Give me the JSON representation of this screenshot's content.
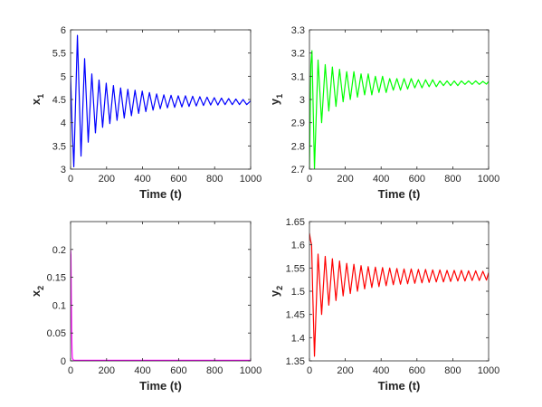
{
  "chart_data": [
    {
      "id": "x1",
      "type": "line",
      "xlabel": "Time (t)",
      "ylabel": {
        "base": "x",
        "sub": "1"
      },
      "xlim": [
        0,
        1000
      ],
      "ylim": [
        3,
        6
      ],
      "xticks": [
        0,
        200,
        400,
        600,
        800,
        1000
      ],
      "yticks": [
        3,
        3.5,
        4,
        4.5,
        5,
        5.5,
        6
      ],
      "ytick_labels": [
        "3",
        "3.5",
        "4",
        "4.5",
        "5",
        "5.5",
        "6"
      ],
      "color": "#0000ff",
      "series": [
        {
          "x": [
            0,
            8,
            18,
            38,
            58,
            78,
            98,
            118,
            138,
            158,
            178,
            198,
            218,
            238,
            258,
            278,
            298,
            318,
            338,
            358,
            378,
            398,
            418,
            438,
            458,
            478,
            498,
            518,
            538,
            558,
            578,
            598,
            618,
            638,
            658,
            678,
            698,
            718,
            738,
            758,
            778,
            798,
            818,
            838,
            858,
            878,
            898,
            918,
            938,
            958,
            978,
            1000
          ],
          "y": [
            5.0,
            4.0,
            3.05,
            5.88,
            3.28,
            5.38,
            3.58,
            5.05,
            3.78,
            4.92,
            3.9,
            4.85,
            3.98,
            4.8,
            4.05,
            4.75,
            4.1,
            4.72,
            4.15,
            4.7,
            4.2,
            4.68,
            4.24,
            4.65,
            4.27,
            4.62,
            4.3,
            4.6,
            4.32,
            4.59,
            4.33,
            4.58,
            4.34,
            4.58,
            4.35,
            4.57,
            4.36,
            4.56,
            4.37,
            4.55,
            4.38,
            4.54,
            4.38,
            4.53,
            4.39,
            4.52,
            4.39,
            4.51,
            4.39,
            4.5,
            4.39,
            4.47
          ]
        }
      ]
    },
    {
      "id": "y1",
      "type": "line",
      "xlabel": "Time (t)",
      "ylabel": {
        "base": "y",
        "sub": "1"
      },
      "xlim": [
        0,
        1000
      ],
      "ylim": [
        2.7,
        3.3
      ],
      "xticks": [
        0,
        200,
        400,
        600,
        800,
        1000
      ],
      "yticks": [
        2.7,
        2.8,
        2.9,
        3.0,
        3.1,
        3.2,
        3.3
      ],
      "ytick_labels": [
        "2.7",
        "2.8",
        "2.9",
        "3",
        "3.1",
        "3.2",
        "3.3"
      ],
      "color": "#00ff00",
      "series": [
        {
          "x": [
            0,
            8,
            14,
            28,
            48,
            68,
            88,
            108,
            128,
            148,
            168,
            188,
            208,
            228,
            248,
            268,
            288,
            308,
            328,
            348,
            368,
            388,
            408,
            428,
            448,
            468,
            488,
            508,
            528,
            548,
            568,
            588,
            608,
            628,
            648,
            668,
            688,
            708,
            728,
            748,
            768,
            788,
            808,
            828,
            848,
            868,
            888,
            908,
            928,
            948,
            968,
            988,
            1000
          ],
          "y": [
            2.7,
            3.15,
            3.21,
            2.7,
            3.17,
            2.9,
            3.15,
            2.95,
            3.14,
            2.97,
            3.13,
            2.99,
            3.12,
            3.0,
            3.12,
            3.01,
            3.11,
            3.02,
            3.11,
            3.02,
            3.1,
            3.03,
            3.1,
            3.03,
            3.09,
            3.04,
            3.09,
            3.04,
            3.09,
            3.045,
            3.09,
            3.05,
            3.085,
            3.05,
            3.085,
            3.055,
            3.085,
            3.055,
            3.08,
            3.06,
            3.08,
            3.06,
            3.08,
            3.06,
            3.08,
            3.065,
            3.08,
            3.065,
            3.08,
            3.065,
            3.078,
            3.066,
            3.078
          ]
        }
      ]
    },
    {
      "id": "x2",
      "type": "line",
      "xlabel": "Time (t)",
      "ylabel": {
        "base": "x",
        "sub": "2"
      },
      "xlim": [
        0,
        1000
      ],
      "ylim": [
        0,
        0.25
      ],
      "xticks": [
        0,
        200,
        400,
        600,
        800,
        1000
      ],
      "yticks": [
        0,
        0.05,
        0.1,
        0.15,
        0.2
      ],
      "ytick_labels": [
        "0",
        "0.05",
        "0.1",
        "0.15",
        "0.2"
      ],
      "color": "#ff00ff",
      "series": [
        {
          "x": [
            0,
            2,
            4,
            6,
            8,
            10,
            14,
            20,
            1000
          ],
          "y": [
            0.2,
            0.19,
            0.12,
            0.06,
            0.02,
            0.006,
            0.002,
            0.001,
            0.001
          ]
        }
      ]
    },
    {
      "id": "y2",
      "type": "line",
      "xlabel": "Time (t)",
      "ylabel": {
        "base": "y",
        "sub": "2"
      },
      "xlim": [
        0,
        1000
      ],
      "ylim": [
        1.35,
        1.65
      ],
      "xticks": [
        0,
        200,
        400,
        600,
        800,
        1000
      ],
      "yticks": [
        1.35,
        1.4,
        1.45,
        1.5,
        1.55,
        1.6,
        1.65
      ],
      "ytick_labels": [
        "1.35",
        "1.4",
        "1.45",
        "1.5",
        "1.55",
        "1.6",
        "1.65"
      ],
      "color": "#ff0000",
      "series": [
        {
          "x": [
            0,
            6,
            12,
            18,
            28,
            48,
            68,
            88,
            108,
            128,
            148,
            168,
            188,
            208,
            228,
            248,
            268,
            288,
            308,
            328,
            348,
            368,
            388,
            408,
            428,
            448,
            468,
            488,
            508,
            528,
            548,
            568,
            588,
            608,
            628,
            648,
            668,
            688,
            708,
            728,
            748,
            768,
            788,
            808,
            828,
            848,
            868,
            888,
            908,
            928,
            948,
            968,
            988,
            1000
          ],
          "y": [
            1.625,
            1.61,
            1.6,
            1.5,
            1.36,
            1.58,
            1.45,
            1.575,
            1.47,
            1.57,
            1.48,
            1.565,
            1.49,
            1.56,
            1.495,
            1.558,
            1.5,
            1.555,
            1.505,
            1.553,
            1.508,
            1.552,
            1.51,
            1.551,
            1.512,
            1.55,
            1.514,
            1.549,
            1.515,
            1.548,
            1.516,
            1.548,
            1.517,
            1.547,
            1.518,
            1.547,
            1.519,
            1.546,
            1.52,
            1.546,
            1.52,
            1.545,
            1.521,
            1.545,
            1.522,
            1.545,
            1.522,
            1.544,
            1.523,
            1.544,
            1.523,
            1.543,
            1.524,
            1.54
          ]
        }
      ]
    }
  ]
}
